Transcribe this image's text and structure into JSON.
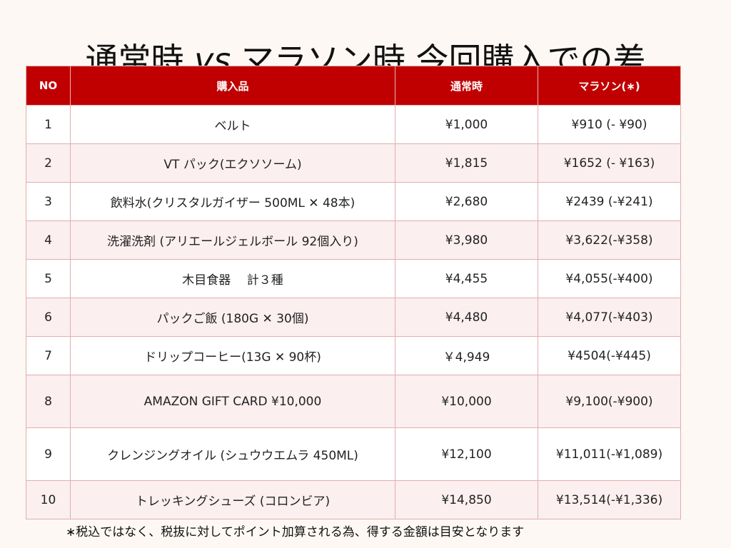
{
  "title": {
    "part1": "通常時 ",
    "vs": "vs",
    "part2": " マラソン時 今回購入での差"
  },
  "table": {
    "headers": {
      "no": "NO",
      "item": "購入品",
      "normal": "通常時",
      "marathon": "マラソン(∗)"
    },
    "rows": [
      {
        "no": "1",
        "item": "ベルト",
        "normal": "¥1,000",
        "marathon": "¥910 (- ¥90)"
      },
      {
        "no": "2",
        "item": "VT パック(エクソソーム)",
        "normal": "¥1,815",
        "marathon": "¥1652 (- ¥163)"
      },
      {
        "no": "3",
        "item": "飲料水(クリスタルガイザー 500ML ✕ 48本)",
        "normal": "¥2,680",
        "marathon": "¥2439 (-¥241)"
      },
      {
        "no": "4",
        "item": "洗濯洗剤 (アリエールジェルボール 92個入り)",
        "normal": "¥3,980",
        "marathon": "¥3,622(-¥358)"
      },
      {
        "no": "5",
        "item": "木目食器　 計３種",
        "normal": "¥4,455",
        "marathon": "¥4,055(-¥400)"
      },
      {
        "no": "6",
        "item": "パックご飯 (180G ✕ 30個)",
        "normal": "¥4,480",
        "marathon": "¥4,077(-¥403)"
      },
      {
        "no": "7",
        "item": "ドリップコーヒー(13G ✕ 90杯)",
        "normal": "￥4,949",
        "marathon": "¥4504(-¥445)"
      },
      {
        "no": "8",
        "item": "AMAZON GIFT CARD ¥10,000",
        "normal": "¥10,000",
        "marathon": "¥9,100(-¥900)"
      },
      {
        "no": "9",
        "item": "クレンジングオイル (シュウウエムラ 450ML)",
        "normal": "¥12,100",
        "marathon": "¥11,011(-¥1,089)"
      },
      {
        "no": "10",
        "item": "トレッキングシューズ (コロンビア)",
        "normal": "¥14,850",
        "marathon": "¥13,514(-¥1,336)"
      }
    ]
  },
  "note": "∗税込ではなく、税抜に対してポイント加算される為、得する金額は目安となります",
  "colors": {
    "header_bg": "#c00000",
    "header_text": "#ffffff",
    "row_alt_bg": "#fbeff0",
    "page_bg": "#fdf8f3"
  }
}
